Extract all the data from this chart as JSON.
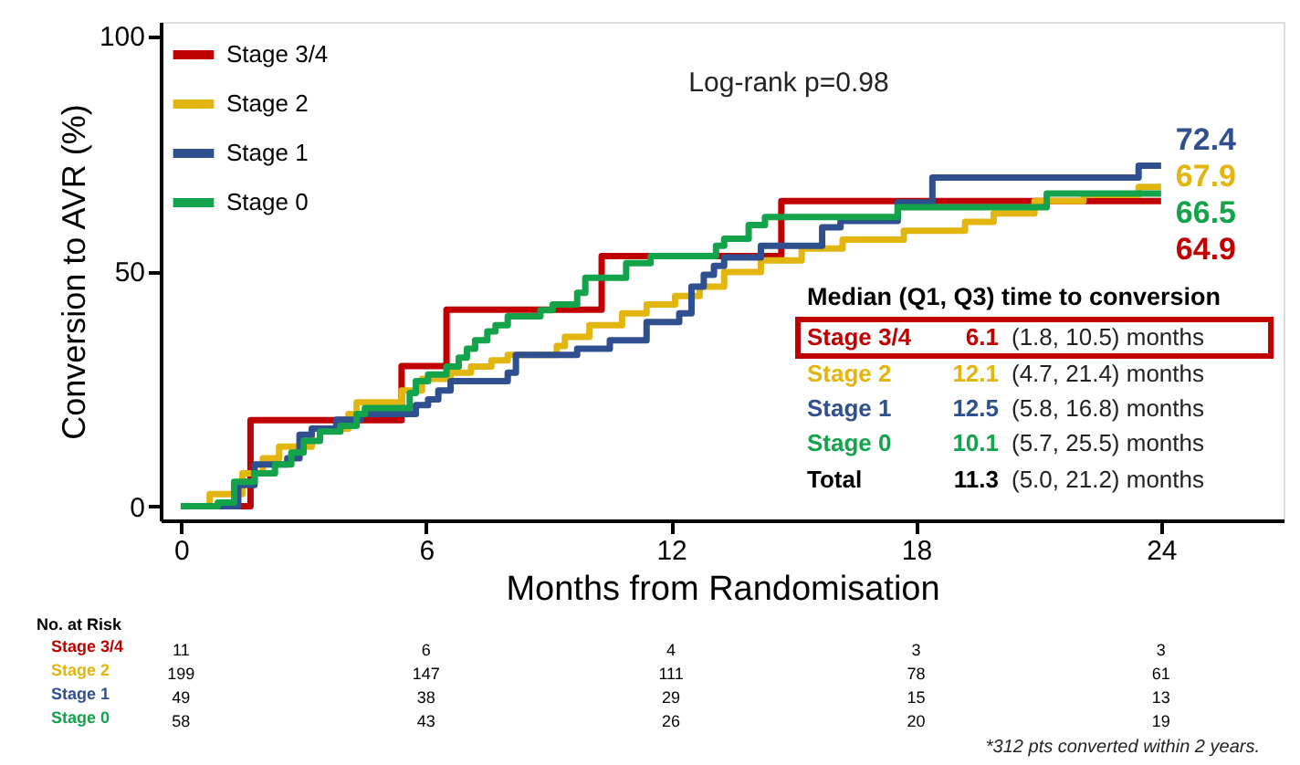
{
  "chart_data": {
    "type": "step",
    "xlabel": "Months from Randomisation",
    "ylabel": "Conversion to AVR (%)",
    "xlim": [
      -0.5,
      27
    ],
    "xticks": [
      0,
      6,
      12,
      18,
      24
    ],
    "ylim": [
      -3,
      103
    ],
    "yticks": [
      0,
      50,
      100
    ],
    "grid": false,
    "legend": "top left",
    "marker": "none",
    "line_style": "solid",
    "series": [
      {
        "name": "Stage 3/4",
        "color": "#c00000",
        "x": [
          0,
          1.7,
          5.4,
          6.5,
          10.3,
          14.7,
          24
        ],
        "values": [
          0,
          18.3,
          29.8,
          41.8,
          53.2,
          64.9,
          64.9
        ],
        "value_labels": [
          null,
          null,
          null,
          null,
          null,
          null,
          "64.9"
        ]
      },
      {
        "name": "Stage 2",
        "color": "#e3b50f",
        "x": [
          0,
          0.7,
          1.5,
          2.0,
          2.4,
          3.2,
          4.1,
          4.3,
          5.4,
          5.9,
          6.6,
          7.1,
          7.6,
          8.0,
          9.2,
          9.4,
          10.0,
          10.8,
          11.4,
          12.1,
          12.7,
          13.3,
          14.2,
          15.2,
          16.2,
          17.7,
          19.2,
          19.9,
          20.9,
          22.1,
          23.45,
          24
        ],
        "values": [
          0,
          2.6,
          7.0,
          10.2,
          12.7,
          16.5,
          19.6,
          22.1,
          24.6,
          27.1,
          28.4,
          29.7,
          31.0,
          32.2,
          34.1,
          36.0,
          38.5,
          41.0,
          42.9,
          44.7,
          46.7,
          49.8,
          52.3,
          54.8,
          56.7,
          58.6,
          60.5,
          62.3,
          64.9,
          66.2,
          67.9,
          67.9
        ],
        "value_labels": [
          null,
          null,
          null,
          null,
          null,
          null,
          null,
          null,
          null,
          null,
          null,
          null,
          null,
          null,
          null,
          null,
          null,
          null,
          null,
          null,
          null,
          null,
          null,
          null,
          null,
          null,
          null,
          null,
          null,
          null,
          null,
          "67.9"
        ]
      },
      {
        "name": "Stage 1",
        "color": "#2f4f8f",
        "x": [
          0,
          1.4,
          1.8,
          2.6,
          2.9,
          3.2,
          3.8,
          4.4,
          5.75,
          6.05,
          6.3,
          6.6,
          8.0,
          8.2,
          9.7,
          10.5,
          11.4,
          12.2,
          12.5,
          12.8,
          13.05,
          13.3,
          14.2,
          15.7,
          16.15,
          17.55,
          18.4,
          23.45,
          24
        ],
        "values": [
          0,
          4.5,
          8.9,
          10.2,
          15.2,
          16.5,
          18.4,
          19.6,
          21.5,
          22.7,
          24.6,
          26.6,
          28.4,
          32.2,
          33.5,
          35.3,
          39.2,
          41.0,
          46.7,
          49.2,
          51.1,
          52.9,
          55.4,
          59.3,
          60.7,
          64.6,
          69.9,
          72.4,
          72.4
        ],
        "value_labels": [
          null,
          null,
          null,
          null,
          null,
          null,
          null,
          null,
          null,
          null,
          null,
          null,
          null,
          null,
          null,
          null,
          null,
          null,
          null,
          null,
          null,
          null,
          null,
          null,
          null,
          null,
          null,
          null,
          "72.4"
        ]
      },
      {
        "name": "Stage 0",
        "color": "#13a34a",
        "x": [
          0,
          0.9,
          1.3,
          1.8,
          2.3,
          2.7,
          3.0,
          3.4,
          3.9,
          4.3,
          4.5,
          5.6,
          5.75,
          6.05,
          6.5,
          6.8,
          7.0,
          7.2,
          7.5,
          7.7,
          8.0,
          8.8,
          9.1,
          9.7,
          9.9,
          10.9,
          11.5,
          13.1,
          13.3,
          13.9,
          14.3,
          17.55,
          21.2,
          24
        ],
        "values": [
          0,
          0.8,
          5.2,
          7.0,
          8.9,
          11.4,
          13.9,
          15.9,
          17.1,
          19.6,
          20.9,
          24.1,
          26.6,
          28.0,
          29.7,
          31.6,
          33.5,
          35.3,
          37.2,
          38.5,
          40.4,
          41.7,
          42.9,
          45.4,
          48.6,
          51.7,
          53.2,
          55.4,
          56.9,
          59.8,
          61.5,
          63.6,
          66.5,
          66.5
        ],
        "value_labels": [
          null,
          null,
          null,
          null,
          null,
          null,
          null,
          null,
          null,
          null,
          null,
          null,
          null,
          null,
          null,
          null,
          null,
          null,
          null,
          null,
          null,
          null,
          null,
          null,
          null,
          null,
          null,
          null,
          null,
          null,
          null,
          null,
          null,
          "66.5"
        ]
      }
    ],
    "annotations": [
      "Log-rank p=0.98",
      "Median (Q1, Q3) time to conversion",
      "Stage 3/4",
      "6.1",
      "(1.8, 10.5) months",
      "Stage 2",
      "12.1",
      "(4.7, 21.4) months",
      "Stage 1",
      "12.5",
      "(5.8, 16.8) months",
      "Stage 0",
      "10.1",
      "(5.7, 25.5) months",
      "Total",
      "11.3",
      "(5.0, 21.2) months",
      "No. at Risk",
      "Stage 3/4",
      "Stage 2",
      "Stage 1",
      "Stage 0",
      "11",
      "6",
      "4",
      "3",
      "3",
      "199",
      "147",
      "111",
      "78",
      "61",
      "49",
      "38",
      "29",
      "15",
      "13",
      "58",
      "43",
      "26",
      "20",
      "19",
      "*312 pts converted within 2 years."
    ]
  }
}
